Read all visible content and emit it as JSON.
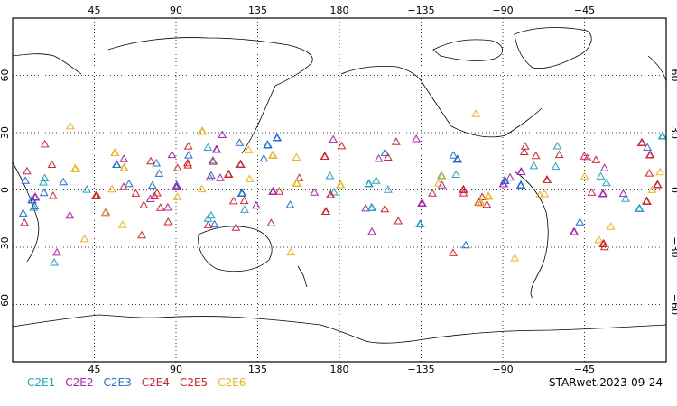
{
  "chart_data": {
    "type": "scatter",
    "marker": "open-triangle",
    "projection": "equirectangular",
    "lon_range": [
      0,
      360
    ],
    "lat_range": [
      -90,
      90
    ],
    "grid": "dotted",
    "obs_lat_range": [
      -45,
      45
    ],
    "top_tick_labels": [
      "45",
      "90",
      "135",
      "180",
      "−135",
      "−90",
      "−45"
    ],
    "bottom_tick_labels": [
      "45",
      "90",
      "135",
      "180",
      "−135",
      "−90",
      "−45"
    ],
    "left_tick_labels": [
      "60",
      "30",
      "0",
      "−30",
      "−60"
    ],
    "right_tick_labels": [
      "60",
      "30",
      "0",
      "−30",
      "−60"
    ],
    "series": [
      {
        "name": "C2E1",
        "color": "#21a5c9"
      },
      {
        "name": "C2E2",
        "color": "#b01fb8"
      },
      {
        "name": "C2E3",
        "color": "#1f6fe0"
      },
      {
        "name": "C2E4",
        "color": "#d8263a"
      },
      {
        "name": "C2E5",
        "color": "#e02020"
      },
      {
        "name": "C2E6",
        "color": "#f2b21a"
      }
    ]
  },
  "footer": {
    "stamp": "STARwet.2023-09-24"
  }
}
